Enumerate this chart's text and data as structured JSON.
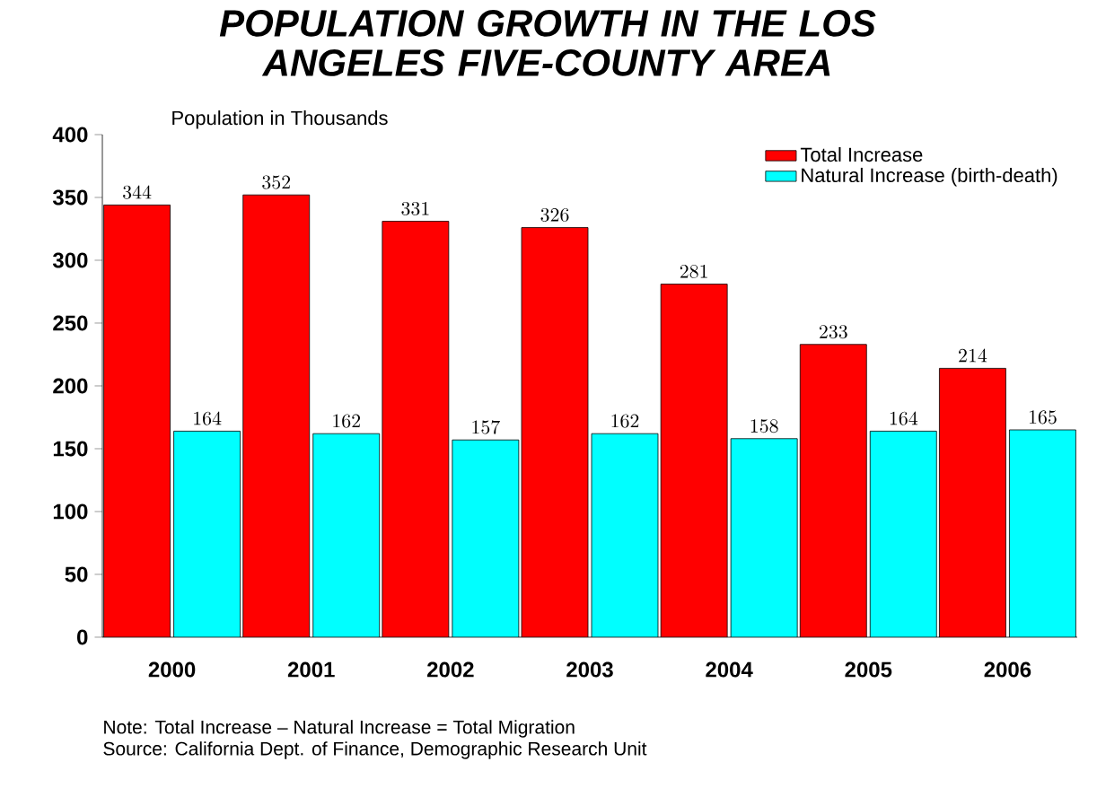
{
  "chart_data": {
    "type": "bar",
    "title": "POPULATION GROWTH IN THE LOS ANGELES FIVE-COUNTY AREA",
    "ylabel": "Population in Thousands",
    "categories": [
      "2000",
      "2001",
      "2002",
      "2003",
      "2004",
      "2005",
      "2006"
    ],
    "series": [
      {
        "name": "Total Increase",
        "color": "#ff0000",
        "values": [
          344,
          352,
          331,
          326,
          281,
          233,
          214
        ]
      },
      {
        "name": "Natural Increase (birth-death)",
        "color": "#00ffff",
        "values": [
          164,
          162,
          157,
          162,
          158,
          164,
          165
        ]
      }
    ],
    "ylim": [
      0,
      400
    ],
    "yticks": [
      0,
      50,
      100,
      150,
      200,
      250,
      300,
      350,
      400
    ],
    "data_labels": true,
    "legend": "top right",
    "annotations": [
      "Note:  Total Increase – Natural Increase = Total Migration",
      "Source:  California Dept. of Finance, Demographic Research Unit"
    ]
  }
}
